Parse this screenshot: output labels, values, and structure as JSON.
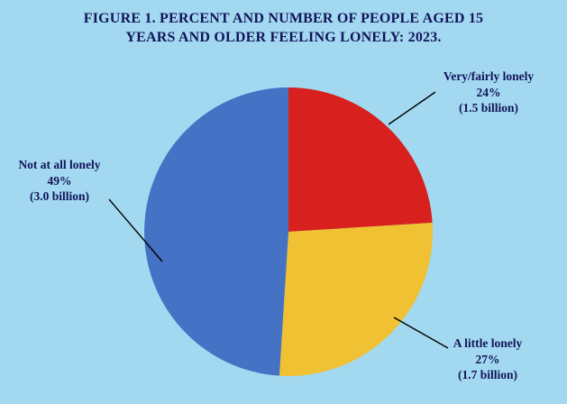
{
  "colors": {
    "background": "#A2D9F0",
    "text": "#14145A",
    "leader_line": "#000000"
  },
  "title": {
    "line1": "FIGURE 1. PERCENT AND NUMBER OF PEOPLE AGED 15",
    "line2": "YEARS AND OLDER FEELING LONELY: 2023."
  },
  "chart_data": {
    "type": "pie",
    "title": "FIGURE 1. PERCENT AND NUMBER OF PEOPLE AGED 15 YEARS AND OLDER FEELING LONELY: 2023.",
    "start_angle_deg": 0,
    "direction": "clockwise",
    "legend_position": "callout-labels",
    "slices": [
      {
        "id": "very-fairly-lonely",
        "label": "Very/fairly lonely",
        "percent": 24,
        "percent_label": "24%",
        "count_label": "(1.5 billion)",
        "count_value": "1.5 billion",
        "color": "#D8201F"
      },
      {
        "id": "a-little-lonely",
        "label": "A little lonely",
        "percent": 27,
        "percent_label": "27%",
        "count_label": "(1.7 billion)",
        "count_value": "1.7 billion",
        "color": "#EFC133"
      },
      {
        "id": "not-at-all-lonely",
        "label": "Not at all lonely",
        "percent": 49,
        "percent_label": "49%",
        "count_label": "(3.0 billion)",
        "count_value": "3.0 billion",
        "color": "#4472C4"
      }
    ]
  }
}
